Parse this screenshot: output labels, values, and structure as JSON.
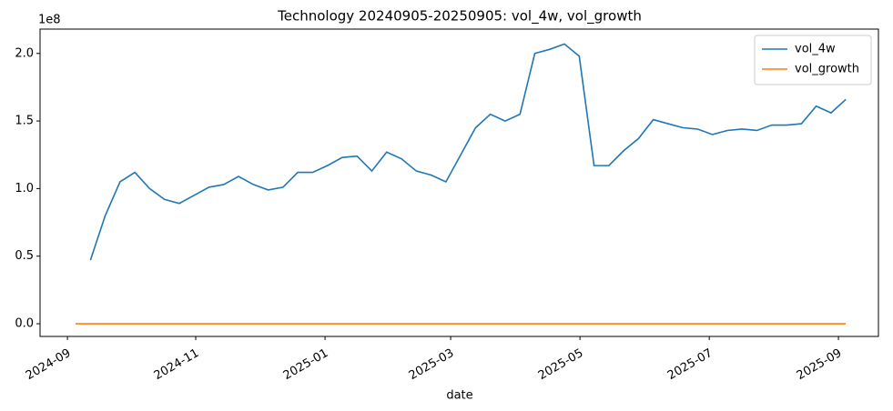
{
  "chart_data": {
    "type": "line",
    "title": "Technology 20240905-20250905: vol_4w, vol_growth",
    "x_label": "date",
    "y_offset_label": "1e8",
    "series": [
      {
        "name": "vol_4w",
        "color": "#1f77b4",
        "values": [
          null,
          0.47,
          0.8,
          1.05,
          1.12,
          1.0,
          0.92,
          0.89,
          0.95,
          1.01,
          1.03,
          1.09,
          1.03,
          0.99,
          1.01,
          1.12,
          1.12,
          1.17,
          1.23,
          1.24,
          1.13,
          1.27,
          1.22,
          1.13,
          1.1,
          1.05,
          1.25,
          1.45,
          1.55,
          1.5,
          1.55,
          2.0,
          2.03,
          2.07,
          1.98,
          1.17,
          1.17,
          1.28,
          1.37,
          1.51,
          1.48,
          1.45,
          1.44,
          1.4,
          1.43,
          1.44,
          1.43,
          1.47,
          1.47,
          1.48,
          1.61,
          1.56,
          1.66
        ]
      },
      {
        "name": "vol_growth",
        "color": "#ff7f0e",
        "values": [
          0,
          0,
          0,
          0,
          0,
          0,
          0,
          0,
          0,
          0,
          0,
          0,
          0,
          0,
          0,
          0,
          0,
          0,
          0,
          0,
          0,
          0,
          0,
          0,
          0,
          0,
          0,
          0,
          0,
          0,
          0,
          0,
          0,
          0,
          0,
          0,
          0,
          0,
          0,
          0,
          0,
          0,
          0,
          0,
          0,
          0,
          0,
          0,
          0,
          0,
          0,
          0,
          0
        ]
      }
    ],
    "xlim": [
      -2.4,
      54.2
    ],
    "xticks": [
      {
        "value": -0.55,
        "label": "2024-09"
      },
      {
        "value": 8.11,
        "label": "2024-11"
      },
      {
        "value": 16.84,
        "label": "2025-01"
      },
      {
        "value": 25.32,
        "label": "2025-03"
      },
      {
        "value": 34.05,
        "label": "2025-05"
      },
      {
        "value": 42.78,
        "label": "2025-07"
      },
      {
        "value": 51.5,
        "label": "2025-09"
      }
    ],
    "ylim": [
      -0.094,
      2.18
    ],
    "yticks": [
      {
        "value": 0,
        "label": "0.0"
      },
      0.5,
      {
        "value": 1,
        "label": "1.0"
      },
      1.5,
      {
        "value": 2,
        "label": "2.0"
      }
    ],
    "legend": "upper right",
    "grid": false
  }
}
